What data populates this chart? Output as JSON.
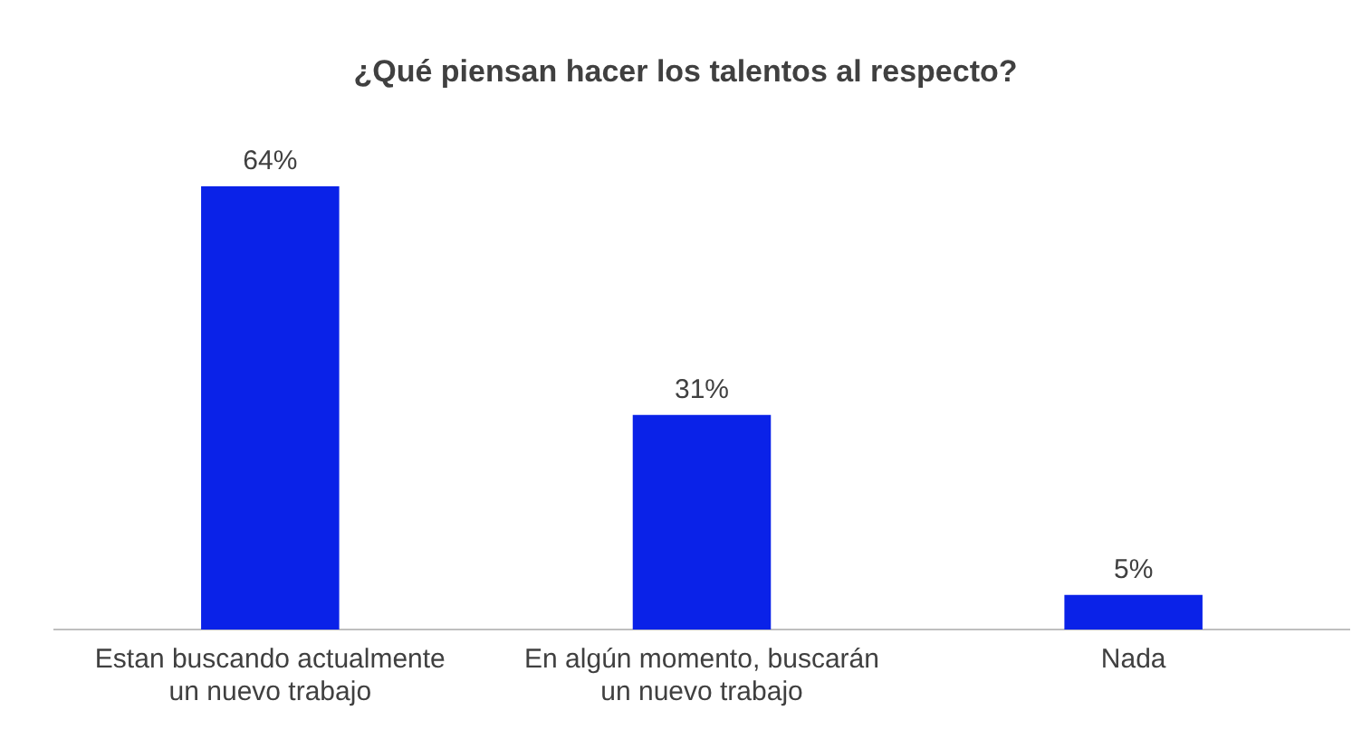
{
  "chart_data": {
    "type": "bar",
    "title": "¿Qué piensan hacer los talentos al respecto?",
    "categories": [
      "Estan buscando actualmente un nuevo trabajo",
      "En algún momento, buscarán un nuevo trabajo",
      "Nada"
    ],
    "values": [
      64,
      31,
      5
    ],
    "value_labels": [
      "64%",
      "31%",
      "5%"
    ],
    "color": "#0a22e8",
    "grid": false,
    "legend": false
  }
}
